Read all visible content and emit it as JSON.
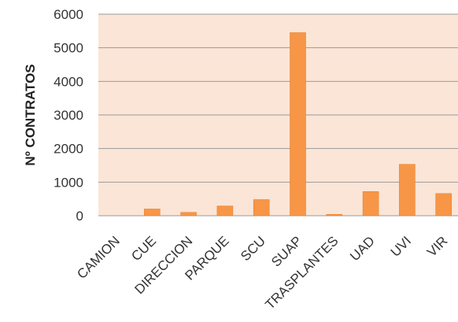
{
  "chart_data": {
    "type": "bar",
    "ylabel": "Nº CONTRATOS",
    "xlabel": "",
    "categories": [
      "CAMION",
      "CUE",
      "DIRECCION",
      "PARQUE",
      "SCU",
      "SUAP",
      "TRASPLANTES",
      "UAD",
      "UVI",
      "VIR"
    ],
    "values": [
      0,
      200,
      100,
      290,
      480,
      5450,
      40,
      720,
      1530,
      660
    ],
    "ylim": [
      0,
      6000
    ],
    "yticks": [
      0,
      1000,
      2000,
      3000,
      4000,
      5000,
      6000
    ],
    "grid": true,
    "legend": "none",
    "colors": {
      "bar": "#f79646",
      "bar_edge": "#e07b27",
      "plot_bg": "#fbe5d6",
      "gridline": "#9a9a9a"
    }
  }
}
